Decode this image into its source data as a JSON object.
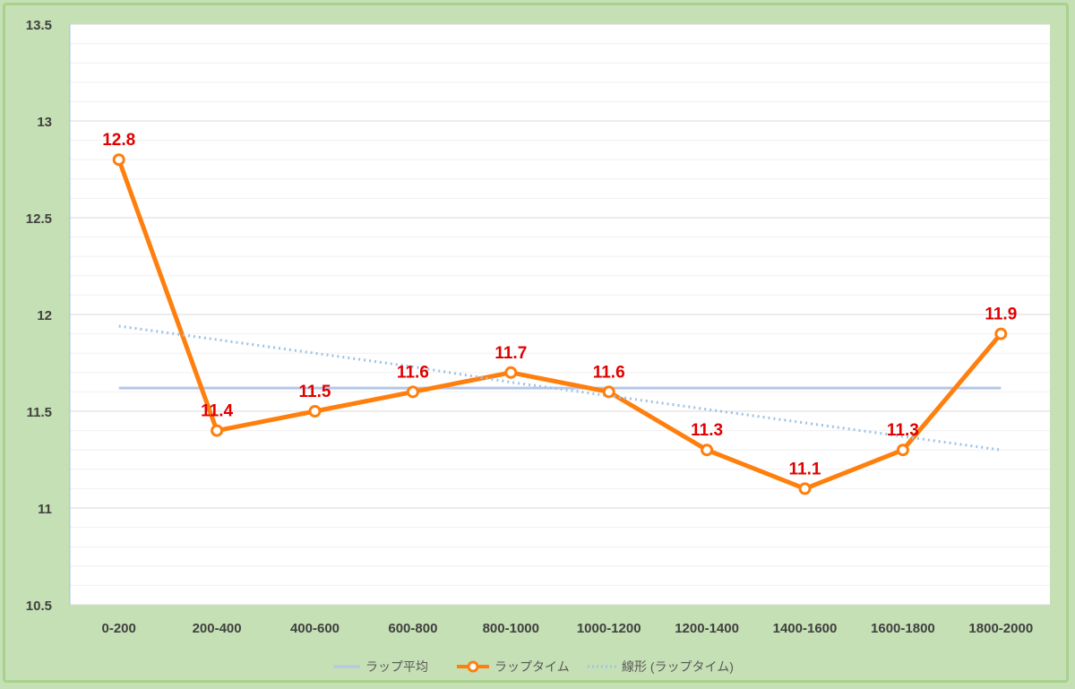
{
  "chart_data": {
    "type": "line",
    "title": "",
    "xlabel": "",
    "ylabel": "",
    "categories": [
      "0-200",
      "200-400",
      "400-600",
      "600-800",
      "800-1000",
      "1000-1200",
      "1200-1400",
      "1400-1600",
      "1600-1800",
      "1800-2000"
    ],
    "ylim": [
      10.5,
      13.5
    ],
    "yticks": [
      "10.5",
      "11",
      "11.5",
      "12",
      "12.5",
      "13",
      "13.5"
    ],
    "grid": true,
    "legend_position": "bottom",
    "series": [
      {
        "name": "ラップ平均",
        "type": "line",
        "values": [
          11.62,
          11.62,
          11.62,
          11.62,
          11.62,
          11.62,
          11.62,
          11.62,
          11.62,
          11.62
        ],
        "color": "#b4c7e7"
      },
      {
        "name": "ラップタイム",
        "type": "line-markers",
        "values": [
          12.8,
          11.4,
          11.5,
          11.6,
          11.7,
          11.6,
          11.3,
          11.1,
          11.3,
          11.9
        ],
        "labels": [
          "12.8",
          "11.4",
          "11.5",
          "11.6",
          "11.7",
          "11.6",
          "11.3",
          "11.1",
          "11.3",
          "11.9"
        ],
        "color": "#ff7f0e"
      },
      {
        "name": "線形 (ラップタイム)",
        "type": "trendline",
        "values": [
          11.94,
          11.87,
          11.8,
          11.73,
          11.65,
          11.58,
          11.51,
          11.44,
          11.37,
          11.3
        ],
        "color": "#9dc3e6"
      }
    ],
    "label_color": "#e00000"
  }
}
